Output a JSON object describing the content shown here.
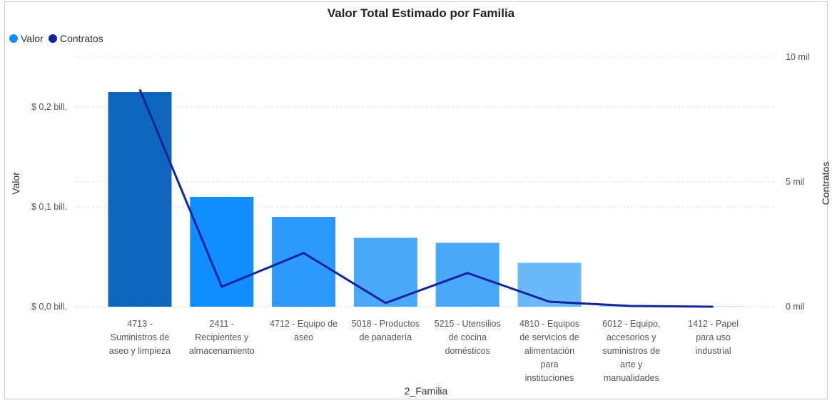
{
  "chart_data": {
    "type": "bar",
    "title": "Valor Total Estimado por Familia",
    "xlabel": "2_Familia",
    "ylabel": "Valor",
    "y2label": "Contratos",
    "legend_position": "top-left",
    "grid": true,
    "ylim": [
      0,
      0.25
    ],
    "y2lim": [
      0,
      10000
    ],
    "y_ticks": [
      {
        "value": 0,
        "label": "$ 0,0 bill."
      },
      {
        "value": 0.1,
        "label": "$ 0,1 bill."
      },
      {
        "value": 0.2,
        "label": "$ 0,2 bill."
      }
    ],
    "y2_ticks": [
      {
        "value": 0,
        "label": "0 mil"
      },
      {
        "value": 5000,
        "label": "5 mil"
      },
      {
        "value": 10000,
        "label": "10 mil"
      }
    ],
    "categories": [
      [
        "4713 -",
        "Suministros de",
        "aseo y limpieza"
      ],
      [
        "2411 -",
        "Recipientes y",
        "almacenamiento"
      ],
      [
        "4712 - Equipo de",
        "aseo"
      ],
      [
        "5018 - Productos",
        "de panadería"
      ],
      [
        "5215 - Utensilios",
        "de cocina",
        "domésticos"
      ],
      [
        "4810 - Equipos",
        "de servicios de",
        "alimentación",
        "para",
        "instituciones"
      ],
      [
        "6012 - Equipo,",
        "accesorios y",
        "suministros de",
        "arte y",
        "manualidades"
      ],
      [
        "1412 - Papel",
        "para uso",
        "industrial"
      ]
    ],
    "series": [
      {
        "name": "Valor",
        "type": "bar",
        "axis": "left",
        "values": [
          0.215,
          0.11,
          0.09,
          0.069,
          0.064,
          0.044,
          0.001,
          0.0005
        ],
        "colors": [
          "#0e67bd",
          "#118dff",
          "#2d99fb",
          "#4aa8fb",
          "#4aa8fb",
          "#6bb9fb",
          "#9ccdf8",
          "#c9e3fb"
        ]
      },
      {
        "name": "Contratos",
        "type": "line",
        "axis": "right",
        "color": "#12239e",
        "values": [
          8700,
          800,
          2150,
          150,
          1350,
          200,
          30,
          0
        ]
      }
    ]
  }
}
